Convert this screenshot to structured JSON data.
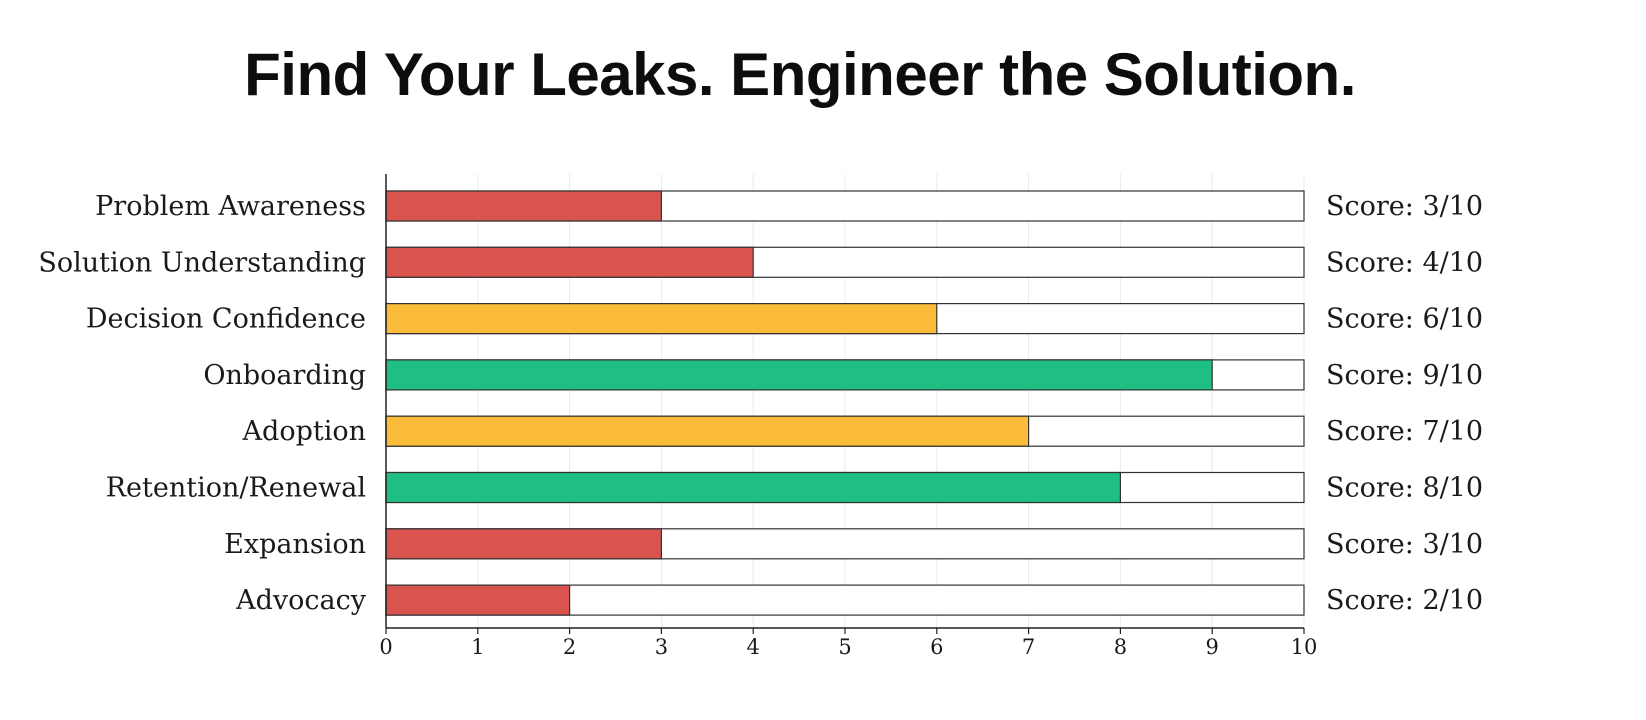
{
  "title": "Find Your Leaks. Engineer the Solution.",
  "chart_data": {
    "type": "bar",
    "orientation": "horizontal",
    "categories": [
      "Problem Awareness",
      "Solution Understanding",
      "Decision Confidence",
      "Onboarding",
      "Adoption",
      "Retention/Renewal",
      "Expansion",
      "Advocacy"
    ],
    "values": [
      3,
      4,
      6,
      9,
      7,
      8,
      3,
      2
    ],
    "max": 10,
    "xlim": [
      0,
      10
    ],
    "xticks": [
      "0",
      "1",
      "2",
      "3",
      "4",
      "5",
      "6",
      "7",
      "8",
      "9",
      "10"
    ],
    "score_labels": [
      "Score: 3/10",
      "Score: 4/10",
      "Score: 6/10",
      "Score: 9/10",
      "Score: 7/10",
      "Score: 8/10",
      "Score: 3/10",
      "Score: 2/10"
    ],
    "colors": {
      "low": "#d9534f",
      "medium": "#fbbc3a",
      "high": "#1fbf83",
      "track_fill": "#ffffff",
      "border": "#333333",
      "grid": "#e3ecec"
    },
    "grid": true,
    "xlabel": "",
    "ylabel": ""
  }
}
